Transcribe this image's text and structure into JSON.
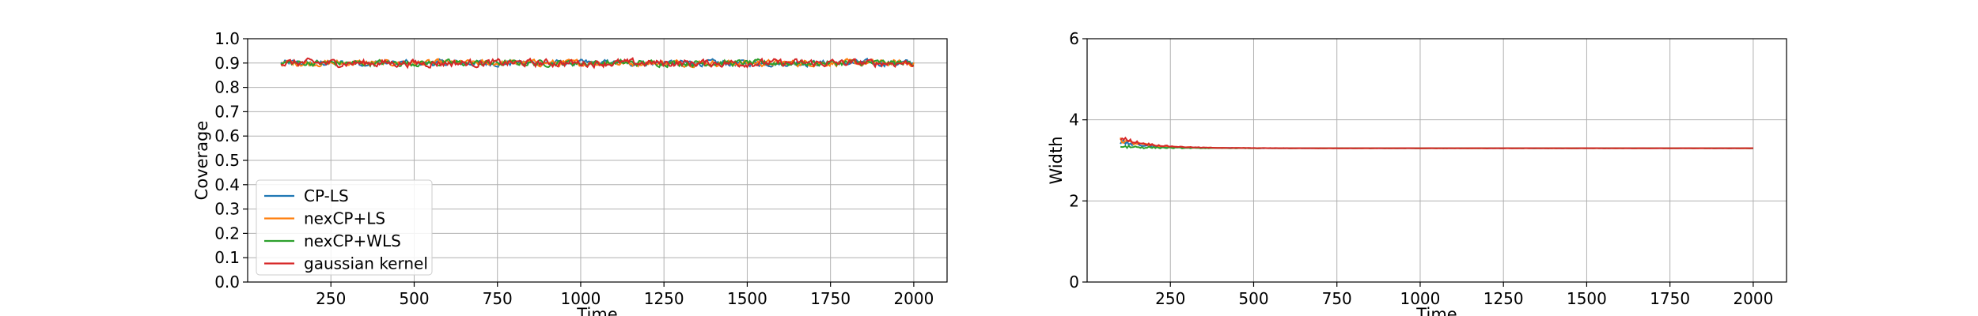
{
  "chart_data": [
    {
      "type": "line",
      "xlabel": "Time",
      "ylabel": "Coverage",
      "xlim": [
        0,
        2100
      ],
      "ylim": [
        0.0,
        1.0
      ],
      "xticks": [
        "250",
        "500",
        "750",
        "1000",
        "1250",
        "1500",
        "1750",
        "2000"
      ],
      "yticks": [
        "0.0",
        "0.1",
        "0.2",
        "0.3",
        "0.4",
        "0.5",
        "0.6",
        "0.7",
        "0.8",
        "0.9",
        "1.0"
      ],
      "grid": true,
      "legend_position": "lower-left",
      "x_range": [
        100,
        2000
      ],
      "series": [
        {
          "name": "CP-LS",
          "color": "#1f77b4",
          "level": 0.9,
          "amplitude": 0.009
        },
        {
          "name": "nexCP+LS",
          "color": "#ff7f0e",
          "level": 0.9,
          "amplitude": 0.009
        },
        {
          "name": "nexCP+WLS",
          "color": "#2ca02c",
          "level": 0.9,
          "amplitude": 0.009
        },
        {
          "name": "gaussian kernel",
          "color": "#d62728",
          "level": 0.9,
          "amplitude": 0.011
        }
      ]
    },
    {
      "type": "line",
      "xlabel": "Time",
      "ylabel": "Width",
      "xlim": [
        0,
        2100
      ],
      "ylim": [
        0,
        6
      ],
      "xticks": [
        "250",
        "500",
        "750",
        "1000",
        "1250",
        "1500",
        "1750",
        "2000"
      ],
      "yticks": [
        "0",
        "2",
        "4",
        "6"
      ],
      "grid": true,
      "x_range": [
        100,
        2000
      ],
      "series": [
        {
          "name": "CP-LS",
          "color": "#1f77b4",
          "start": 3.45,
          "end": 3.3
        },
        {
          "name": "nexCP+LS",
          "color": "#ff7f0e",
          "start": 3.5,
          "end": 3.3
        },
        {
          "name": "nexCP+WLS",
          "color": "#2ca02c",
          "start": 3.35,
          "end": 3.3
        },
        {
          "name": "gaussian kernel",
          "color": "#d62728",
          "start": 3.55,
          "end": 3.3
        }
      ]
    }
  ]
}
